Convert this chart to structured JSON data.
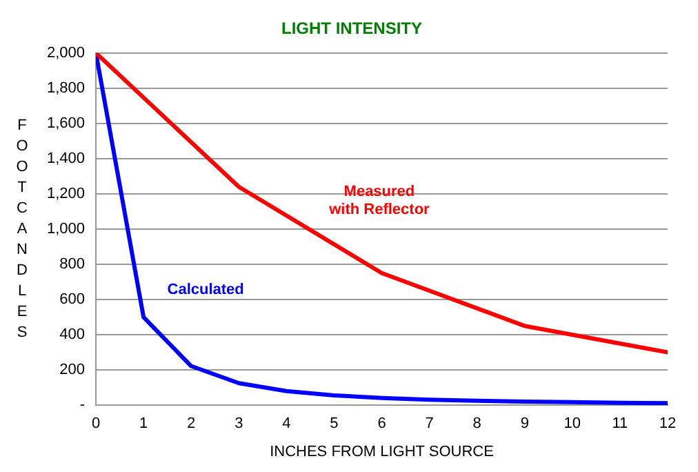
{
  "chart_data": {
    "type": "line",
    "title": "LIGHT INTENSITY",
    "xlabel": "INCHES FROM LIGHT SOURCE",
    "ylabel": "FOOTCANDLES",
    "series": [
      {
        "name": "Measured with Reflector",
        "color": "#ff0000",
        "x": [
          0,
          3,
          6,
          9,
          12
        ],
        "values": [
          2000,
          1240,
          750,
          450,
          300
        ]
      },
      {
        "name": "Calculated",
        "color": "#0000ff",
        "x": [
          0,
          1,
          2,
          3,
          4,
          5,
          6,
          7,
          8,
          9,
          10,
          11,
          12
        ],
        "values": [
          2000,
          500,
          222,
          125,
          80,
          56,
          41,
          31,
          25,
          20,
          17,
          14,
          12
        ]
      }
    ],
    "xlim": [
      0,
      12
    ],
    "xticks": [
      0,
      1,
      2,
      3,
      4,
      5,
      6,
      7,
      8,
      9,
      10,
      11,
      12
    ],
    "ylim": [
      0,
      2000
    ],
    "yticks": [
      {
        "value": 0,
        "label": "-"
      },
      {
        "value": 200,
        "label": "200"
      },
      {
        "value": 400,
        "label": "400"
      },
      {
        "value": 600,
        "label": "600"
      },
      {
        "value": 800,
        "label": "800"
      },
      {
        "value": 1000,
        "label": "1,000"
      },
      {
        "value": 1200,
        "label": "1,200"
      },
      {
        "value": 1400,
        "label": "1,400"
      },
      {
        "value": 1600,
        "label": "1,600"
      },
      {
        "value": 1800,
        "label": "1,800"
      },
      {
        "value": 2000,
        "label": "2,000"
      }
    ],
    "grid": "y",
    "legend": false,
    "marker": "none",
    "line_style": "solid"
  }
}
